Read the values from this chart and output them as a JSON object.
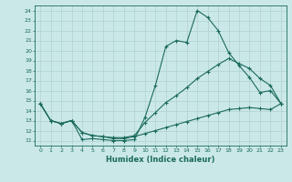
{
  "xlabel": "Humidex (Indice chaleur)",
  "bg_color": "#cbe8e8",
  "line_color": "#1a6b5a",
  "grid_color": "#b0d0d0",
  "xlim": [
    -0.5,
    23.5
  ],
  "ylim": [
    10.5,
    24.5
  ],
  "xticks": [
    0,
    1,
    2,
    3,
    4,
    5,
    6,
    7,
    8,
    9,
    10,
    11,
    12,
    13,
    14,
    15,
    16,
    17,
    18,
    19,
    20,
    21,
    22,
    23
  ],
  "yticks": [
    11,
    12,
    13,
    14,
    15,
    16,
    17,
    18,
    19,
    20,
    21,
    22,
    23,
    24
  ],
  "series1_x": [
    0,
    1,
    2,
    3,
    4,
    5,
    6,
    7,
    8,
    9,
    10,
    11,
    12,
    13,
    14,
    15,
    16,
    17,
    18,
    19,
    20,
    21,
    22,
    23
  ],
  "series1_y": [
    14.7,
    13.0,
    12.7,
    13.0,
    11.1,
    11.2,
    11.1,
    11.0,
    11.0,
    11.1,
    13.3,
    16.5,
    20.4,
    21.0,
    20.8,
    24.0,
    23.3,
    22.0,
    19.8,
    18.5,
    17.3,
    15.8,
    16.0,
    14.7
  ],
  "series2_x": [
    0,
    1,
    2,
    3,
    4,
    5,
    6,
    7,
    8,
    9,
    10,
    11,
    12,
    13,
    14,
    15,
    16,
    17,
    18,
    19,
    20,
    21,
    22,
    23
  ],
  "series2_y": [
    14.7,
    13.0,
    12.7,
    13.0,
    11.8,
    11.5,
    11.4,
    11.3,
    11.3,
    11.5,
    12.8,
    13.8,
    14.8,
    15.5,
    16.3,
    17.2,
    17.9,
    18.6,
    19.2,
    18.7,
    18.2,
    17.2,
    16.5,
    14.7
  ],
  "series3_x": [
    0,
    1,
    2,
    3,
    4,
    5,
    6,
    7,
    8,
    9,
    10,
    11,
    12,
    13,
    14,
    15,
    16,
    17,
    18,
    19,
    20,
    21,
    22,
    23
  ],
  "series3_y": [
    14.7,
    13.0,
    12.7,
    13.0,
    11.8,
    11.5,
    11.4,
    11.2,
    11.2,
    11.4,
    11.7,
    12.0,
    12.3,
    12.6,
    12.9,
    13.2,
    13.5,
    13.8,
    14.1,
    14.2,
    14.3,
    14.2,
    14.1,
    14.7
  ]
}
